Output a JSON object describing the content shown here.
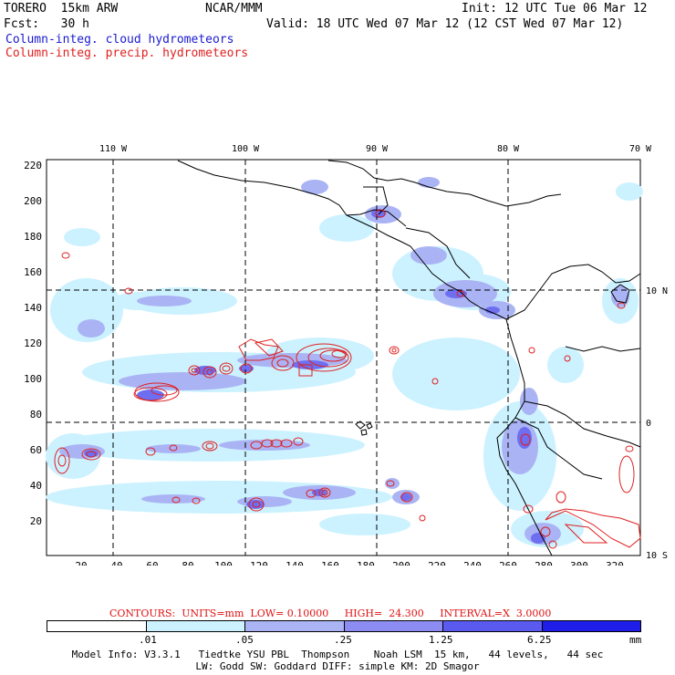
{
  "header": {
    "model": "TORERO  15km ARW",
    "org": "NCAR/MMM",
    "init": "Init: 12 UTC Tue 06 Mar 12",
    "fcst": "Fcst:   30 h",
    "valid": "Valid: 18 UTC Wed 07 Mar 12 (12 CST Wed 07 Mar 12)",
    "legend_cloud": "Column-integ. cloud hydrometeors",
    "legend_precip": "Column-integ. precip. hydrometeors"
  },
  "map": {
    "top_lon_labels": [
      "110 W",
      "100 W",
      "90 W",
      "80 W",
      "70 W"
    ],
    "right_lat_labels": [
      "10 N",
      "0",
      "10 S"
    ],
    "x_ticks": [
      "20",
      "40",
      "60",
      "80",
      "100",
      "120",
      "140",
      "160",
      "180",
      "200",
      "220",
      "240",
      "260",
      "280",
      "300",
      "320"
    ],
    "y_ticks": [
      "20",
      "40",
      "60",
      "80",
      "100",
      "120",
      "140",
      "160",
      "180",
      "200",
      "220"
    ],
    "colors": {
      "light": "#ccf2ff",
      "mid": "#aab4f4",
      "dark": "#6e6ef0",
      "precip": "#e02020",
      "coast": "#000000"
    }
  },
  "contours": "CONTOURS:  UNITS=mm  LOW= 0.10000     HIGH=  24.300     INTERVAL=X  3.0000",
  "colorbar": {
    "labels": [
      ".01",
      ".05",
      ".25",
      "1.25",
      "6.25",
      "mm"
    ],
    "colors": [
      "#ffffff",
      "#ccf2ff",
      "#aab4f4",
      "#8c8cf2",
      "#5a5af0",
      "#1e1ee8"
    ]
  },
  "model_info": {
    "line1": "Model Info: V3.3.1   Tiedtke YSU PBL  Thompson    Noah LSM  15 km,   44 levels,   44 sec",
    "line2": "LW: Godd SW: Goddard DIFF: simple KM: 2D Smagor"
  }
}
